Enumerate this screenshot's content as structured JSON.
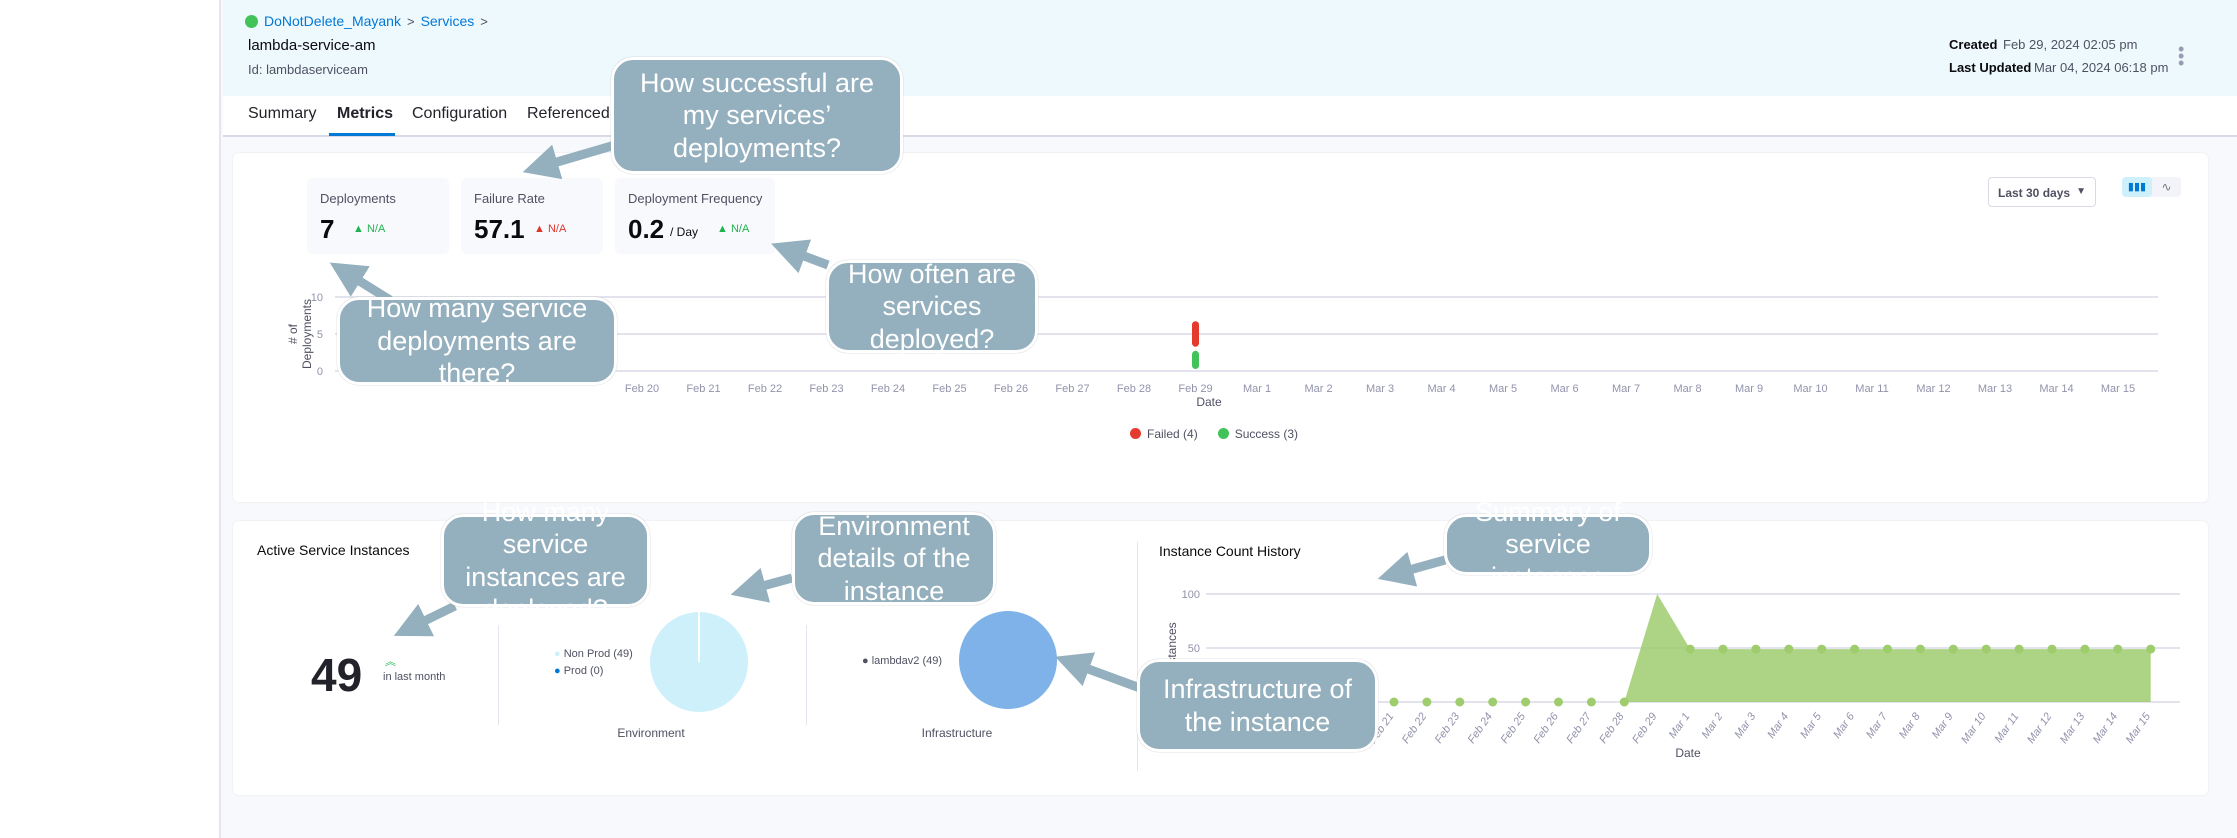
{
  "breadcrumb": {
    "project": "DoNotDelete_Mayank",
    "section": "Services",
    "sep": ">"
  },
  "service": {
    "name": "lambda-service-am",
    "id": "Id: lambdaserviceam"
  },
  "meta": {
    "created_label": "Created",
    "created": "Feb 29, 2024 02:05 pm",
    "updated_label": "Last Updated",
    "updated": "Mar 04, 2024 06:18 pm"
  },
  "tabs": [
    {
      "label": "Summary"
    },
    {
      "label": "Metrics",
      "active": true
    },
    {
      "label": "Configuration"
    },
    {
      "label": "Referenced"
    }
  ],
  "stats": [
    {
      "label": "Deployments",
      "value": "7",
      "unit": "",
      "change": "N/A",
      "change_color": "#1fb34f"
    },
    {
      "label": "Failure Rate",
      "value": "57.1",
      "unit": "",
      "change": "N/A",
      "change_color": "#e0352b"
    },
    {
      "label": "Deployment Frequency",
      "value": "0.2",
      "unit": "/ Day",
      "change": "N/A",
      "change_color": "#1fb34f"
    }
  ],
  "range_select": {
    "value": "Last 30 days"
  },
  "chart_toggle": {
    "active": "bar-chart-icon",
    "inactive": "line-chart-icon"
  },
  "chart_data": [
    {
      "type": "bar",
      "stacked": true,
      "ylabel": "# of Deployments",
      "xlabel": "Date",
      "ylim": [
        0,
        10
      ],
      "yticks": [
        0,
        5,
        10
      ],
      "grid": true,
      "legend_placement": "bottom",
      "categories": [
        "Feb 20",
        "Feb 21",
        "Feb 22",
        "Feb 23",
        "Feb 24",
        "Feb 25",
        "Feb 26",
        "Feb 27",
        "Feb 28",
        "Feb 29",
        "Mar 1",
        "Mar 2",
        "Mar 3",
        "Mar 4",
        "Mar 5",
        "Mar 6",
        "Mar 7",
        "Mar 8",
        "Mar 9",
        "Mar 10",
        "Mar 11",
        "Mar 12",
        "Mar 13",
        "Mar 14",
        "Mar 15"
      ],
      "series": [
        {
          "name": "Success (3)",
          "color": "#42c359",
          "values": [
            0,
            0,
            0,
            0,
            0,
            0,
            0,
            0,
            0,
            3,
            0,
            0,
            0,
            0,
            0,
            0,
            0,
            0,
            0,
            0,
            0,
            0,
            0,
            0,
            0
          ]
        },
        {
          "name": "Failed (4)",
          "color": "#e43b2e",
          "values": [
            0,
            0,
            0,
            0,
            0,
            0,
            0,
            0,
            0,
            4,
            0,
            0,
            0,
            0,
            0,
            0,
            0,
            0,
            0,
            0,
            0,
            0,
            0,
            0,
            0
          ]
        }
      ]
    },
    {
      "type": "pie",
      "title": "Environment",
      "slices": [
        {
          "name": "Non Prod (49)",
          "value": 49,
          "color": "#cdf0fb"
        },
        {
          "name": "Prod (0)",
          "value": 0,
          "color": "#0278d5"
        }
      ]
    },
    {
      "type": "pie",
      "title": "Infrastructure",
      "slices": [
        {
          "name": "lambdav2 (49)",
          "value": 49,
          "color": "#7fb2e8"
        }
      ]
    },
    {
      "type": "area",
      "title": "Instance Count History",
      "ylabel": "Instances",
      "xlabel": "Date",
      "ylim": [
        0,
        100
      ],
      "yticks": [
        0,
        50,
        100
      ],
      "grid": true,
      "color": "#9fcd6e",
      "categories": [
        "Feb 21",
        "Feb 22",
        "Feb 23",
        "Feb 24",
        "Feb 25",
        "Feb 26",
        "Feb 27",
        "Feb 28",
        "Feb 29",
        "Mar 1",
        "Mar 2",
        "Mar 3",
        "Mar 4",
        "Mar 5",
        "Mar 6",
        "Mar 7",
        "Mar 8",
        "Mar 9",
        "Mar 10",
        "Mar 11",
        "Mar 12",
        "Mar 13",
        "Mar 14",
        "Mar 15"
      ],
      "values": [
        0,
        0,
        0,
        0,
        0,
        0,
        0,
        0,
        100,
        49,
        49,
        49,
        49,
        49,
        49,
        49,
        49,
        49,
        49,
        49,
        49,
        49,
        49,
        49
      ]
    }
  ],
  "instances": {
    "title": "Active Service Instances",
    "count": "49",
    "trend": "in last month",
    "trend_icon": "double-chevron-up-icon"
  },
  "callouts": [
    "How successful are my services’ deployments?",
    "How many service deployments are there?",
    "How often are services deployed?",
    "How many service instances are deployed?",
    "Environment details of the instance",
    "Summary of service instances",
    "Infrastructure of the instance"
  ]
}
